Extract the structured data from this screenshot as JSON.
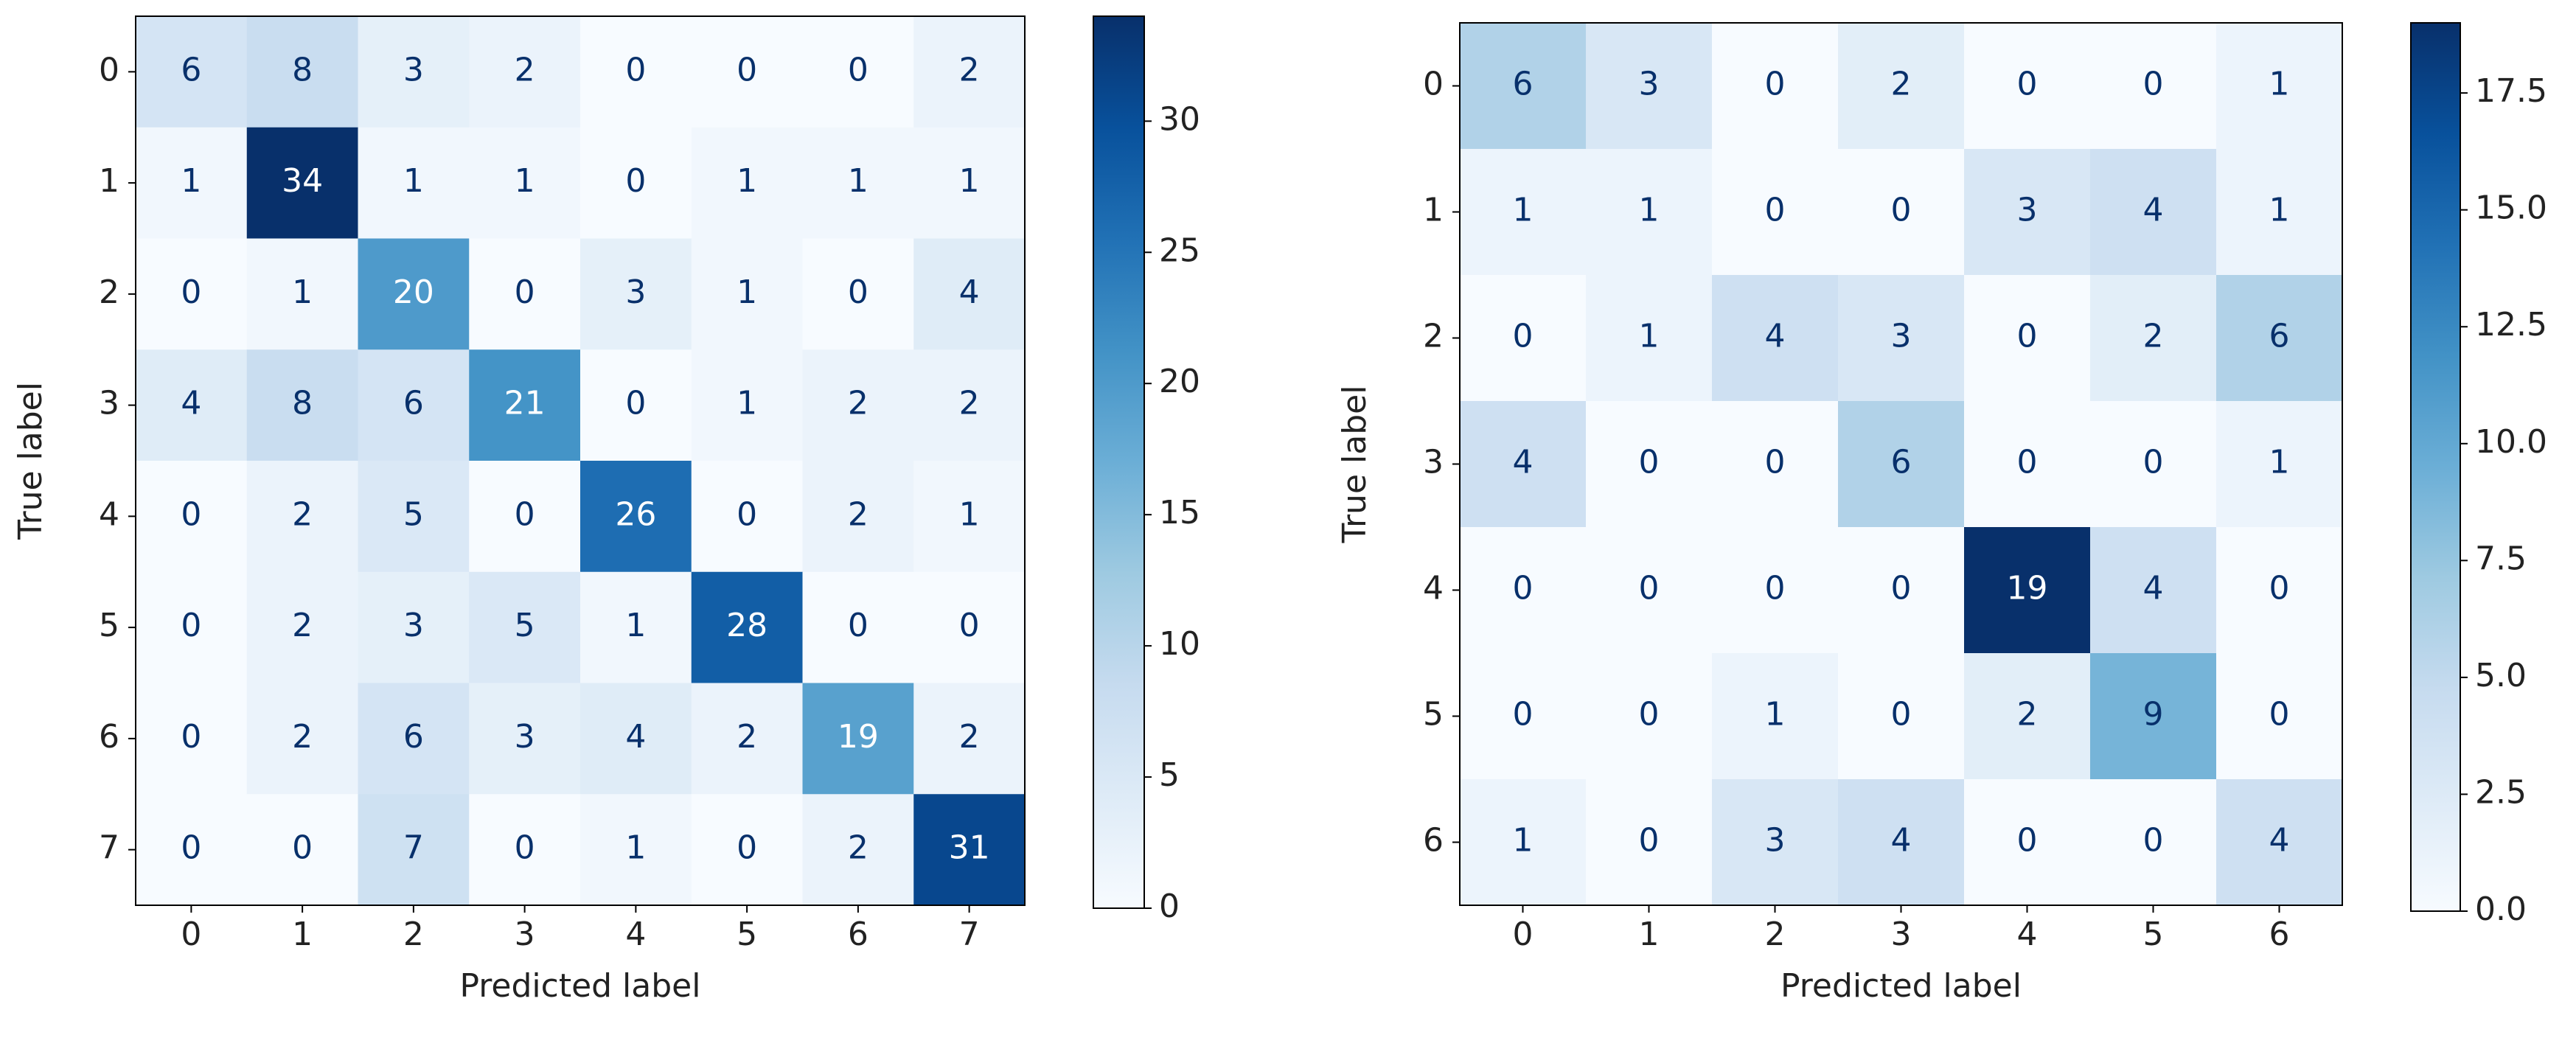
{
  "chart_data": [
    {
      "type": "heatmap",
      "cmap": "Blues",
      "x_categories": [
        "0",
        "1",
        "2",
        "3",
        "4",
        "5",
        "6",
        "7"
      ],
      "y_categories": [
        "0",
        "1",
        "2",
        "3",
        "4",
        "5",
        "6",
        "7"
      ],
      "values": [
        [
          6,
          8,
          3,
          2,
          0,
          0,
          0,
          2
        ],
        [
          1,
          34,
          1,
          1,
          0,
          1,
          1,
          1
        ],
        [
          0,
          1,
          20,
          0,
          3,
          1,
          0,
          4
        ],
        [
          4,
          8,
          6,
          21,
          0,
          1,
          2,
          2
        ],
        [
          0,
          2,
          5,
          0,
          26,
          0,
          2,
          1
        ],
        [
          0,
          2,
          3,
          5,
          1,
          28,
          0,
          0
        ],
        [
          0,
          2,
          6,
          3,
          4,
          2,
          19,
          2
        ],
        [
          0,
          0,
          7,
          0,
          1,
          0,
          2,
          31
        ]
      ],
      "xlabel": "Predicted label",
      "ylabel": "True label",
      "zlim": [
        0,
        34
      ],
      "zticks": [
        0,
        5,
        10,
        15,
        20,
        25,
        30
      ]
    },
    {
      "type": "heatmap",
      "cmap": "Blues",
      "x_categories": [
        "0",
        "1",
        "2",
        "3",
        "4",
        "5",
        "6"
      ],
      "y_categories": [
        "0",
        "1",
        "2",
        "3",
        "4",
        "5",
        "6"
      ],
      "values": [
        [
          6,
          3,
          0,
          2,
          0,
          0,
          1
        ],
        [
          1,
          1,
          0,
          0,
          3,
          4,
          1
        ],
        [
          0,
          1,
          4,
          3,
          0,
          2,
          6
        ],
        [
          4,
          0,
          0,
          6,
          0,
          0,
          1
        ],
        [
          0,
          0,
          0,
          0,
          19,
          4,
          0
        ],
        [
          0,
          0,
          1,
          0,
          2,
          9,
          0
        ],
        [
          1,
          0,
          3,
          4,
          0,
          0,
          4
        ]
      ],
      "xlabel": "Predicted label",
      "ylabel": "True label",
      "zlim": [
        0,
        19
      ],
      "zticks": [
        {
          "value": 0,
          "label": "0.0"
        },
        2.5,
        {
          "value": 5,
          "label": "5.0"
        },
        7.5,
        {
          "value": 10,
          "label": "10.0"
        },
        12.5,
        {
          "value": 15,
          "label": "15.0"
        },
        17.5
      ]
    }
  ]
}
